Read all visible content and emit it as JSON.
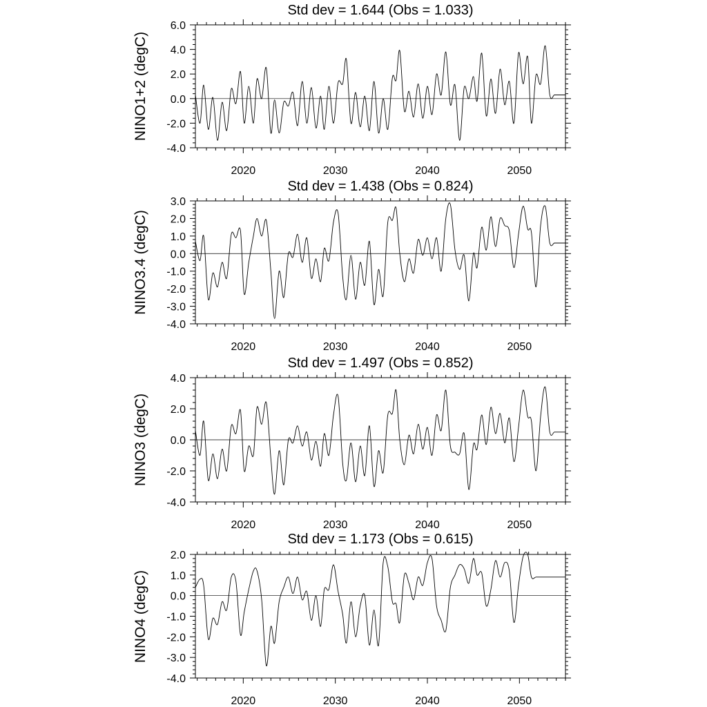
{
  "chart_data": [
    {
      "type": "line",
      "title": "Std dev = 1.644 (Obs = 1.033)",
      "ylabel": "NINO1+2 (degC)",
      "xlabel": "",
      "xlim": [
        2014.8,
        2055.0
      ],
      "ylim": [
        -4.0,
        6.0
      ],
      "yticks": [
        -4,
        -2,
        0,
        2,
        4,
        6
      ],
      "ytick_labels": [
        "-4.0",
        "-2.0",
        "0.0",
        "2.0",
        "4.0",
        "6.0"
      ],
      "xticks": [
        2020,
        2030,
        2040,
        2050
      ],
      "xtick_labels": [
        "2020",
        "2030",
        "2040",
        "2050"
      ],
      "reference_line": 0,
      "series": [
        {
          "x": [
            2014.8,
            2015.3,
            2015.7,
            2016.2,
            2016.7,
            2017.2,
            2017.7,
            2018.2,
            2018.7,
            2019.2,
            2019.7,
            2020.1,
            2020.6,
            2021.1,
            2021.5,
            2022.0,
            2022.5,
            2023.0,
            2023.4,
            2023.9,
            2024.4,
            2024.9,
            2025.4,
            2025.9,
            2026.4,
            2026.9,
            2027.4,
            2027.9,
            2028.4,
            2028.8,
            2029.3,
            2029.8,
            2030.3,
            2030.8,
            2031.2,
            2031.7,
            2032.2,
            2032.7,
            2033.2,
            2033.7,
            2034.2,
            2034.7,
            2035.2,
            2035.7,
            2036.2,
            2036.6,
            2037.0,
            2037.5,
            2038.0,
            2038.5,
            2039.0,
            2039.5,
            2040.0,
            2040.5,
            2041.0,
            2041.5,
            2042.0,
            2042.5,
            2043.0,
            2043.5,
            2044.0,
            2044.5,
            2045.0,
            2045.4,
            2045.9,
            2046.4,
            2046.9,
            2047.4,
            2047.9,
            2048.4,
            2048.9,
            2049.4,
            2049.9,
            2050.4,
            2050.9,
            2051.3,
            2051.8,
            2052.3,
            2052.8,
            2053.3,
            2053.8,
            2054.3,
            2054.7,
            2055.0
          ],
          "y": [
            0.3,
            -2.0,
            1.1,
            -2.5,
            0.1,
            -3.4,
            -0.3,
            -2.6,
            0.8,
            -0.4,
            2.2,
            -2.0,
            1.0,
            -2.0,
            1.6,
            0.0,
            2.5,
            -2.8,
            -0.1,
            -2.8,
            -0.3,
            -0.6,
            0.5,
            -2.2,
            1.4,
            -2.0,
            0.9,
            -2.4,
            0.2,
            -2.5,
            1.0,
            -2.0,
            1.3,
            1.2,
            3.2,
            -2.0,
            0.5,
            -2.3,
            0.2,
            -2.6,
            1.4,
            -2.8,
            0.0,
            -2.5,
            1.7,
            1.5,
            3.9,
            -1.0,
            0.6,
            -1.5,
            1.2,
            -1.6,
            1.0,
            -1.3,
            2.0,
            0.3,
            3.8,
            -0.5,
            1.1,
            -3.4,
            0.9,
            0.0,
            1.8,
            -0.2,
            3.7,
            -1.4,
            1.6,
            -1.2,
            2.4,
            -0.5,
            1.4,
            -2.0,
            3.7,
            1.2,
            3.4,
            -2.0,
            1.9,
            1.2,
            4.3,
            0.3,
            0.3,
            0.3,
            0.3,
            0.3
          ]
        }
      ]
    },
    {
      "type": "line",
      "title": "Std dev = 1.438 (Obs = 0.824)",
      "ylabel": "NINO3.4 (degC)",
      "xlabel": "",
      "xlim": [
        2014.8,
        2055.0
      ],
      "ylim": [
        -4.0,
        3.0
      ],
      "yticks": [
        -4,
        -3,
        -2,
        -1,
        0,
        1,
        2,
        3
      ],
      "ytick_labels": [
        "-4.0",
        "-3.0",
        "-2.0",
        "-1.0",
        "0.0",
        "1.0",
        "2.0",
        "3.0"
      ],
      "xticks": [
        2020,
        2030,
        2040,
        2050
      ],
      "xtick_labels": [
        "2020",
        "2030",
        "2040",
        "2050"
      ],
      "reference_line": 0,
      "series": [
        {
          "x": [
            2014.8,
            2015.3,
            2015.7,
            2016.2,
            2016.7,
            2017.2,
            2017.7,
            2018.2,
            2018.7,
            2019.2,
            2019.7,
            2020.1,
            2020.6,
            2021.1,
            2021.5,
            2022.0,
            2022.5,
            2023.0,
            2023.4,
            2023.9,
            2024.4,
            2024.9,
            2025.4,
            2025.9,
            2026.4,
            2026.9,
            2027.4,
            2027.9,
            2028.4,
            2028.8,
            2029.3,
            2029.8,
            2030.3,
            2030.8,
            2031.2,
            2031.7,
            2032.2,
            2032.7,
            2033.2,
            2033.7,
            2034.2,
            2034.7,
            2035.2,
            2035.7,
            2036.2,
            2036.6,
            2037.0,
            2037.5,
            2038.0,
            2038.5,
            2039.0,
            2039.5,
            2040.0,
            2040.5,
            2041.0,
            2041.5,
            2042.0,
            2042.5,
            2043.0,
            2043.5,
            2044.0,
            2044.5,
            2045.0,
            2045.4,
            2045.9,
            2046.4,
            2046.9,
            2047.4,
            2047.9,
            2048.4,
            2048.9,
            2049.4,
            2049.9,
            2050.4,
            2050.9,
            2051.3,
            2051.8,
            2052.3,
            2052.8,
            2053.3,
            2053.8,
            2054.3,
            2054.7,
            2055.0
          ],
          "y": [
            0.7,
            -0.4,
            1.0,
            -2.6,
            -1.1,
            -1.9,
            -0.5,
            -1.4,
            1.1,
            0.9,
            1.3,
            -2.3,
            -0.5,
            1.0,
            2.0,
            1.0,
            1.9,
            -1.0,
            -3.7,
            -1.0,
            -2.5,
            0.0,
            -0.2,
            1.1,
            -0.5,
            0.9,
            -1.4,
            -0.3,
            -1.6,
            0.3,
            -0.4,
            1.8,
            2.3,
            -1.3,
            -2.6,
            -0.1,
            -2.6,
            -0.5,
            -1.8,
            0.7,
            -2.9,
            -0.9,
            -2.4,
            1.8,
            1.9,
            2.6,
            0.0,
            -1.6,
            -0.3,
            -1.1,
            0.8,
            -0.1,
            0.9,
            -0.3,
            0.9,
            -1.0,
            2.0,
            2.8,
            0.2,
            -0.9,
            -0.1,
            -2.7,
            0.0,
            -0.8,
            1.5,
            0.2,
            2.1,
            0.4,
            2.0,
            1.6,
            1.3,
            -0.8,
            1.1,
            2.7,
            1.4,
            1.2,
            -1.9,
            1.6,
            2.7,
            0.6,
            0.6,
            0.6,
            0.6,
            0.6
          ]
        }
      ]
    },
    {
      "type": "line",
      "title": "Std dev = 1.497 (Obs = 0.852)",
      "ylabel": "NINO3 (degC)",
      "xlabel": "",
      "xlim": [
        2014.8,
        2055.0
      ],
      "ylim": [
        -4.0,
        4.0
      ],
      "yticks": [
        -4,
        -2,
        0,
        2,
        4
      ],
      "ytick_labels": [
        "-4.0",
        "-2.0",
        "0.0",
        "2.0",
        "4.0"
      ],
      "xticks": [
        2020,
        2030,
        2040,
        2050
      ],
      "xtick_labels": [
        "2020",
        "2030",
        "2040",
        "2050"
      ],
      "reference_line": 0,
      "series": [
        {
          "x": [
            2014.8,
            2015.3,
            2015.7,
            2016.2,
            2016.7,
            2017.2,
            2017.7,
            2018.2,
            2018.7,
            2019.2,
            2019.7,
            2020.1,
            2020.6,
            2021.1,
            2021.5,
            2022.0,
            2022.5,
            2023.0,
            2023.4,
            2023.9,
            2024.4,
            2024.9,
            2025.4,
            2025.9,
            2026.4,
            2026.9,
            2027.4,
            2027.9,
            2028.4,
            2028.8,
            2029.3,
            2029.8,
            2030.3,
            2030.8,
            2031.2,
            2031.7,
            2032.2,
            2032.7,
            2033.2,
            2033.7,
            2034.2,
            2034.7,
            2035.2,
            2035.7,
            2036.2,
            2036.6,
            2037.0,
            2037.5,
            2038.0,
            2038.5,
            2039.0,
            2039.5,
            2040.0,
            2040.5,
            2041.0,
            2041.5,
            2042.0,
            2042.5,
            2043.0,
            2043.5,
            2044.0,
            2044.5,
            2045.0,
            2045.4,
            2045.9,
            2046.4,
            2046.9,
            2047.4,
            2047.9,
            2048.4,
            2048.9,
            2049.4,
            2049.9,
            2050.4,
            2050.9,
            2051.3,
            2051.8,
            2052.3,
            2052.8,
            2053.3,
            2053.8,
            2054.3,
            2054.7,
            2055.0
          ],
          "y": [
            0.6,
            -1.0,
            1.2,
            -2.6,
            -0.9,
            -2.5,
            -0.6,
            -2.0,
            0.9,
            0.4,
            1.9,
            -2.0,
            -0.4,
            -1.0,
            2.1,
            1.0,
            2.4,
            -1.2,
            -3.5,
            -0.7,
            -2.9,
            0.0,
            -0.2,
            0.9,
            -0.4,
            0.5,
            -1.3,
            -0.1,
            -1.7,
            0.4,
            -1.0,
            1.6,
            2.8,
            -1.5,
            -2.6,
            -0.2,
            -2.7,
            -0.4,
            -2.3,
            0.9,
            -3.0,
            -0.7,
            -2.1,
            1.6,
            1.7,
            3.2,
            0.0,
            -1.6,
            0.3,
            -0.9,
            1.0,
            -0.6,
            0.8,
            -1.0,
            1.6,
            0.6,
            3.2,
            -0.4,
            -0.8,
            -0.9,
            0.4,
            -3.2,
            -0.3,
            -0.6,
            1.6,
            -0.3,
            2.1,
            0.4,
            1.7,
            -0.2,
            1.4,
            -1.4,
            0.8,
            3.2,
            1.5,
            1.2,
            -2.0,
            1.5,
            3.4,
            0.5,
            0.5,
            0.5,
            0.5,
            0.5
          ]
        }
      ]
    },
    {
      "type": "line",
      "title": "Std dev = 1.173 (Obs = 0.615)",
      "ylabel": "NINO4 (degC)",
      "xlabel": "",
      "xlim": [
        2014.8,
        2055.0
      ],
      "ylim": [
        -4.0,
        2.0
      ],
      "yticks": [
        -4,
        -3,
        -2,
        -1,
        0,
        1,
        2
      ],
      "ytick_labels": [
        "-4.0",
        "-3.0",
        "-2.0",
        "-1.0",
        "0.0",
        "1.0",
        "2.0"
      ],
      "xticks": [
        2020,
        2030,
        2040,
        2050
      ],
      "xtick_labels": [
        "2020",
        "2030",
        "2040",
        "2050"
      ],
      "reference_line": 0,
      "series": [
        {
          "x": [
            2014.8,
            2015.3,
            2015.7,
            2016.2,
            2016.7,
            2017.2,
            2017.7,
            2018.2,
            2018.7,
            2019.2,
            2019.7,
            2020.1,
            2020.6,
            2021.1,
            2021.5,
            2022.0,
            2022.5,
            2023.0,
            2023.4,
            2023.9,
            2024.4,
            2024.9,
            2025.4,
            2025.9,
            2026.4,
            2026.9,
            2027.4,
            2027.9,
            2028.4,
            2028.8,
            2029.3,
            2029.8,
            2030.3,
            2030.8,
            2031.2,
            2031.7,
            2032.2,
            2032.7,
            2033.2,
            2033.7,
            2034.2,
            2034.7,
            2035.2,
            2035.7,
            2036.2,
            2036.6,
            2037.0,
            2037.5,
            2038.0,
            2038.5,
            2039.0,
            2039.5,
            2040.0,
            2040.5,
            2041.0,
            2041.5,
            2042.0,
            2042.5,
            2043.0,
            2043.5,
            2044.0,
            2044.5,
            2045.0,
            2045.4,
            2045.9,
            2046.4,
            2046.9,
            2047.4,
            2047.9,
            2048.4,
            2048.9,
            2049.4,
            2049.9,
            2050.4,
            2050.9,
            2051.3,
            2051.8,
            2052.3,
            2052.8,
            2053.3,
            2053.8,
            2054.3,
            2054.7,
            2055.0
          ],
          "y": [
            0.4,
            0.8,
            0.5,
            -2.1,
            -1.1,
            -1.4,
            -0.3,
            -0.7,
            0.9,
            0.7,
            -1.9,
            -0.8,
            0.3,
            1.2,
            1.2,
            -0.2,
            -3.4,
            -1.5,
            -2.3,
            -0.3,
            0.4,
            0.9,
            0.1,
            0.9,
            -0.2,
            0.2,
            -1.2,
            0.0,
            -1.5,
            0.3,
            0.3,
            1.5,
            0.2,
            -0.9,
            -2.3,
            -0.3,
            -2.0,
            -0.5,
            0.0,
            -2.4,
            -0.7,
            -2.4,
            1.6,
            1.4,
            -0.3,
            -0.4,
            -1.3,
            1.0,
            0.6,
            -0.2,
            0.9,
            0.5,
            1.6,
            1.8,
            -0.5,
            -1.2,
            -1.7,
            0.4,
            1.0,
            1.5,
            1.3,
            0.6,
            1.8,
            1.0,
            1.1,
            -0.5,
            0.3,
            1.7,
            0.9,
            1.6,
            1.2,
            -1.3,
            0.5,
            1.9,
            2.0,
            0.9,
            0.9,
            0.9,
            0.9,
            0.9,
            0.9,
            0.9,
            0.9,
            0.9
          ]
        }
      ]
    }
  ]
}
